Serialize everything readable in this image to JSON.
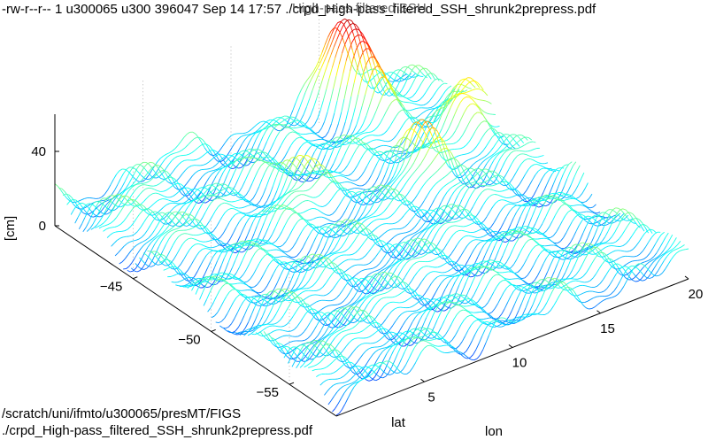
{
  "header": {
    "file_listing": "-rw-r--r-- 1 u300065 u300 396047 Sep 14 17:57 ./crpd_High-pass_filtered_SSH_shrunk2prepress.pdf"
  },
  "footer": {
    "path": "/scratch/uni/ifmto/u300065/presMT/FIGS",
    "file": "./crpd_High-pass_filtered_SSH_shrunk2prepress.pdf"
  },
  "chart_data": {
    "type": "surface-contour3d",
    "title": "High-pass filtered SSH",
    "xlabel": "lon",
    "ylabel": "lat",
    "zlabel": "[cm]",
    "x_ticks": [
      "5",
      "10",
      "15",
      "20"
    ],
    "y_ticks": [
      "-45",
      "-50",
      "-55"
    ],
    "z_ticks": [
      "0",
      "40"
    ],
    "xlim": [
      0,
      20
    ],
    "ylim": [
      -58,
      -40
    ],
    "zlim": [
      0,
      60
    ],
    "colormap": "jet",
    "grid": true,
    "peaks": [
      {
        "lon": 16,
        "lat": -41,
        "ssh": 60
      },
      {
        "lon": 19,
        "lat": -45,
        "ssh": 35
      },
      {
        "lon": 15,
        "lat": -47,
        "ssh": 30
      },
      {
        "lon": 9,
        "lat": -45,
        "ssh": 25
      },
      {
        "lon": 3,
        "lat": -43,
        "ssh": 20
      }
    ]
  }
}
